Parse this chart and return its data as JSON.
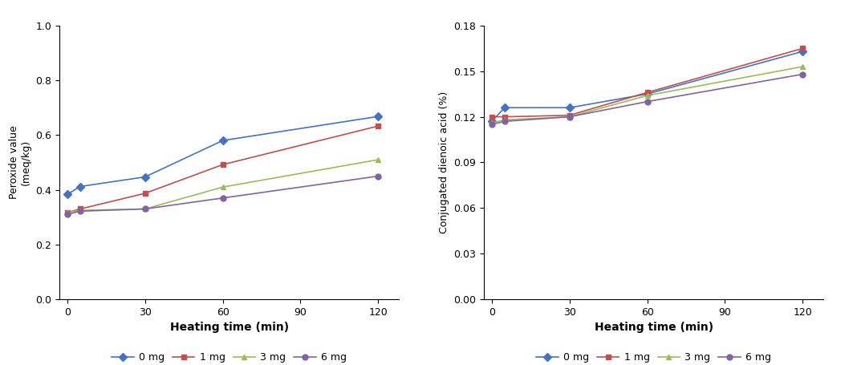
{
  "x": [
    0,
    5,
    30,
    60,
    120
  ],
  "left_chart": {
    "ylabel": "Peroxide value\n(meq/kg)",
    "xlabel": "Heating time (min)",
    "ylim": [
      0.0,
      1.0
    ],
    "yticks": [
      0.0,
      0.2,
      0.4,
      0.6,
      0.8,
      1.0
    ],
    "xticks": [
      0,
      30,
      60,
      90,
      120
    ],
    "series": {
      "0 mg": {
        "color": "#4472C4",
        "marker": "D",
        "values": [
          0.383,
          0.412,
          0.447,
          0.58,
          0.668
        ]
      },
      "1 mg": {
        "color": "#C0504D",
        "marker": "s",
        "values": [
          0.317,
          0.33,
          0.387,
          0.492,
          0.633
        ]
      },
      "3 mg": {
        "color": "#9BBB59",
        "marker": "^",
        "values": [
          0.317,
          0.325,
          0.33,
          0.41,
          0.51
        ]
      },
      "6 mg": {
        "color": "#8064A2",
        "marker": "o",
        "values": [
          0.31,
          0.322,
          0.33,
          0.37,
          0.45
        ]
      }
    }
  },
  "right_chart": {
    "ylabel": "Conjugated dienoic acid (%)",
    "xlabel": "Heating time (min)",
    "ylim": [
      0.0,
      0.18
    ],
    "yticks": [
      0.0,
      0.03,
      0.06,
      0.09,
      0.12,
      0.15,
      0.18
    ],
    "xticks": [
      0,
      30,
      60,
      90,
      120
    ],
    "series": {
      "0 mg": {
        "color": "#4472C4",
        "marker": "D",
        "values": [
          0.117,
          0.126,
          0.126,
          0.135,
          0.163
        ]
      },
      "1 mg": {
        "color": "#C0504D",
        "marker": "s",
        "values": [
          0.12,
          0.12,
          0.121,
          0.136,
          0.165
        ]
      },
      "3 mg": {
        "color": "#9BBB59",
        "marker": "^",
        "values": [
          0.116,
          0.118,
          0.12,
          0.134,
          0.153
        ]
      },
      "6 mg": {
        "color": "#8064A2",
        "marker": "o",
        "values": [
          0.115,
          0.117,
          0.12,
          0.13,
          0.148
        ]
      }
    }
  },
  "legend_labels": [
    "0 mg",
    "1 mg",
    "3 mg",
    "6 mg"
  ],
  "marker_size": 5,
  "linewidth": 1.2,
  "font_size": 9,
  "label_font_size": 10
}
